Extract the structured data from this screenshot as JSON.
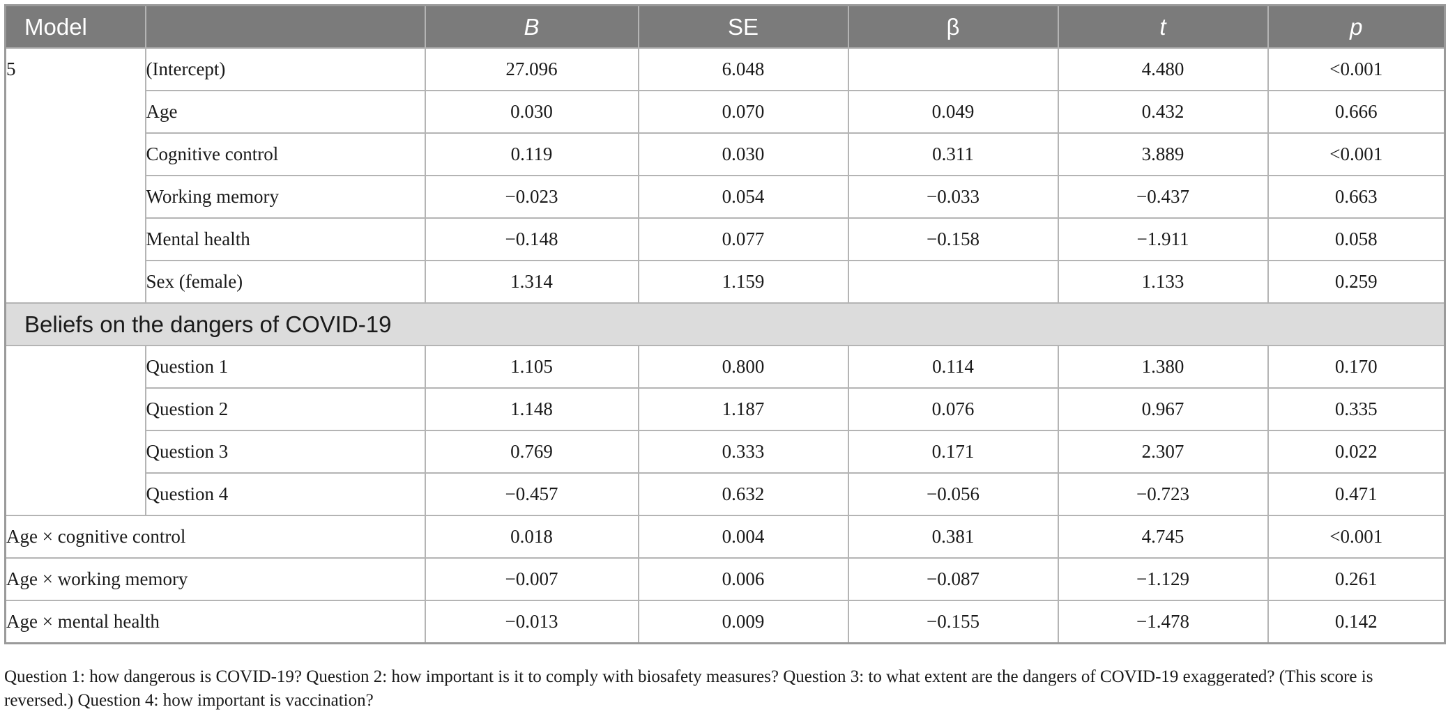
{
  "headers": {
    "model": "Model",
    "b": "B",
    "se": "SE",
    "beta": "β",
    "t": "t",
    "p": "p"
  },
  "model_label": "5",
  "model_rows": [
    {
      "label": "(Intercept)",
      "b": "27.096",
      "se": "6.048",
      "beta": "",
      "t": "4.480",
      "p": "<0.001"
    },
    {
      "label": "Age",
      "b": "0.030",
      "se": "0.070",
      "beta": "0.049",
      "t": "0.432",
      "p": "0.666"
    },
    {
      "label": "Cognitive control",
      "b": "0.119",
      "se": "0.030",
      "beta": "0.311",
      "t": "3.889",
      "p": "<0.001"
    },
    {
      "label": "Working memory",
      "b": "−0.023",
      "se": "0.054",
      "beta": "−0.033",
      "t": "−0.437",
      "p": "0.663"
    },
    {
      "label": "Mental health",
      "b": "−0.148",
      "se": "0.077",
      "beta": "−0.158",
      "t": "−1.911",
      "p": "0.058"
    },
    {
      "label": "Sex (female)",
      "b": "1.314",
      "se": "1.159",
      "beta": "",
      "t": "1.133",
      "p": "0.259"
    }
  ],
  "section_title": "Beliefs on the dangers of COVID-19",
  "question_rows": [
    {
      "label": "Question 1",
      "b": "1.105",
      "se": "0.800",
      "beta": "0.114",
      "t": "1.380",
      "p": "0.170"
    },
    {
      "label": "Question 2",
      "b": "1.148",
      "se": "1.187",
      "beta": "0.076",
      "t": "0.967",
      "p": "0.335"
    },
    {
      "label": "Question 3",
      "b": "0.769",
      "se": "0.333",
      "beta": "0.171",
      "t": "2.307",
      "p": "0.022"
    },
    {
      "label": "Question 4",
      "b": "−0.457",
      "se": "0.632",
      "beta": "−0.056",
      "t": "−0.723",
      "p": "0.471"
    }
  ],
  "interaction_rows": [
    {
      "label": "Age × cognitive control",
      "b": "0.018",
      "se": "0.004",
      "beta": "0.381",
      "t": "4.745",
      "p": "<0.001"
    },
    {
      "label": "Age × working memory",
      "b": "−0.007",
      "se": "0.006",
      "beta": "−0.087",
      "t": "−1.129",
      "p": "0.261"
    },
    {
      "label": "Age × mental health",
      "b": "−0.013",
      "se": "0.009",
      "beta": "−0.155",
      "t": "−1.478",
      "p": "0.142"
    }
  ],
  "footnote": "Question 1: how dangerous is COVID-19? Question 2: how important is it to comply with biosafety measures? Question 3: to what extent are the dangers of COVID-19 exaggerated? (This score is reversed.) Question 4: how important is vaccination?"
}
